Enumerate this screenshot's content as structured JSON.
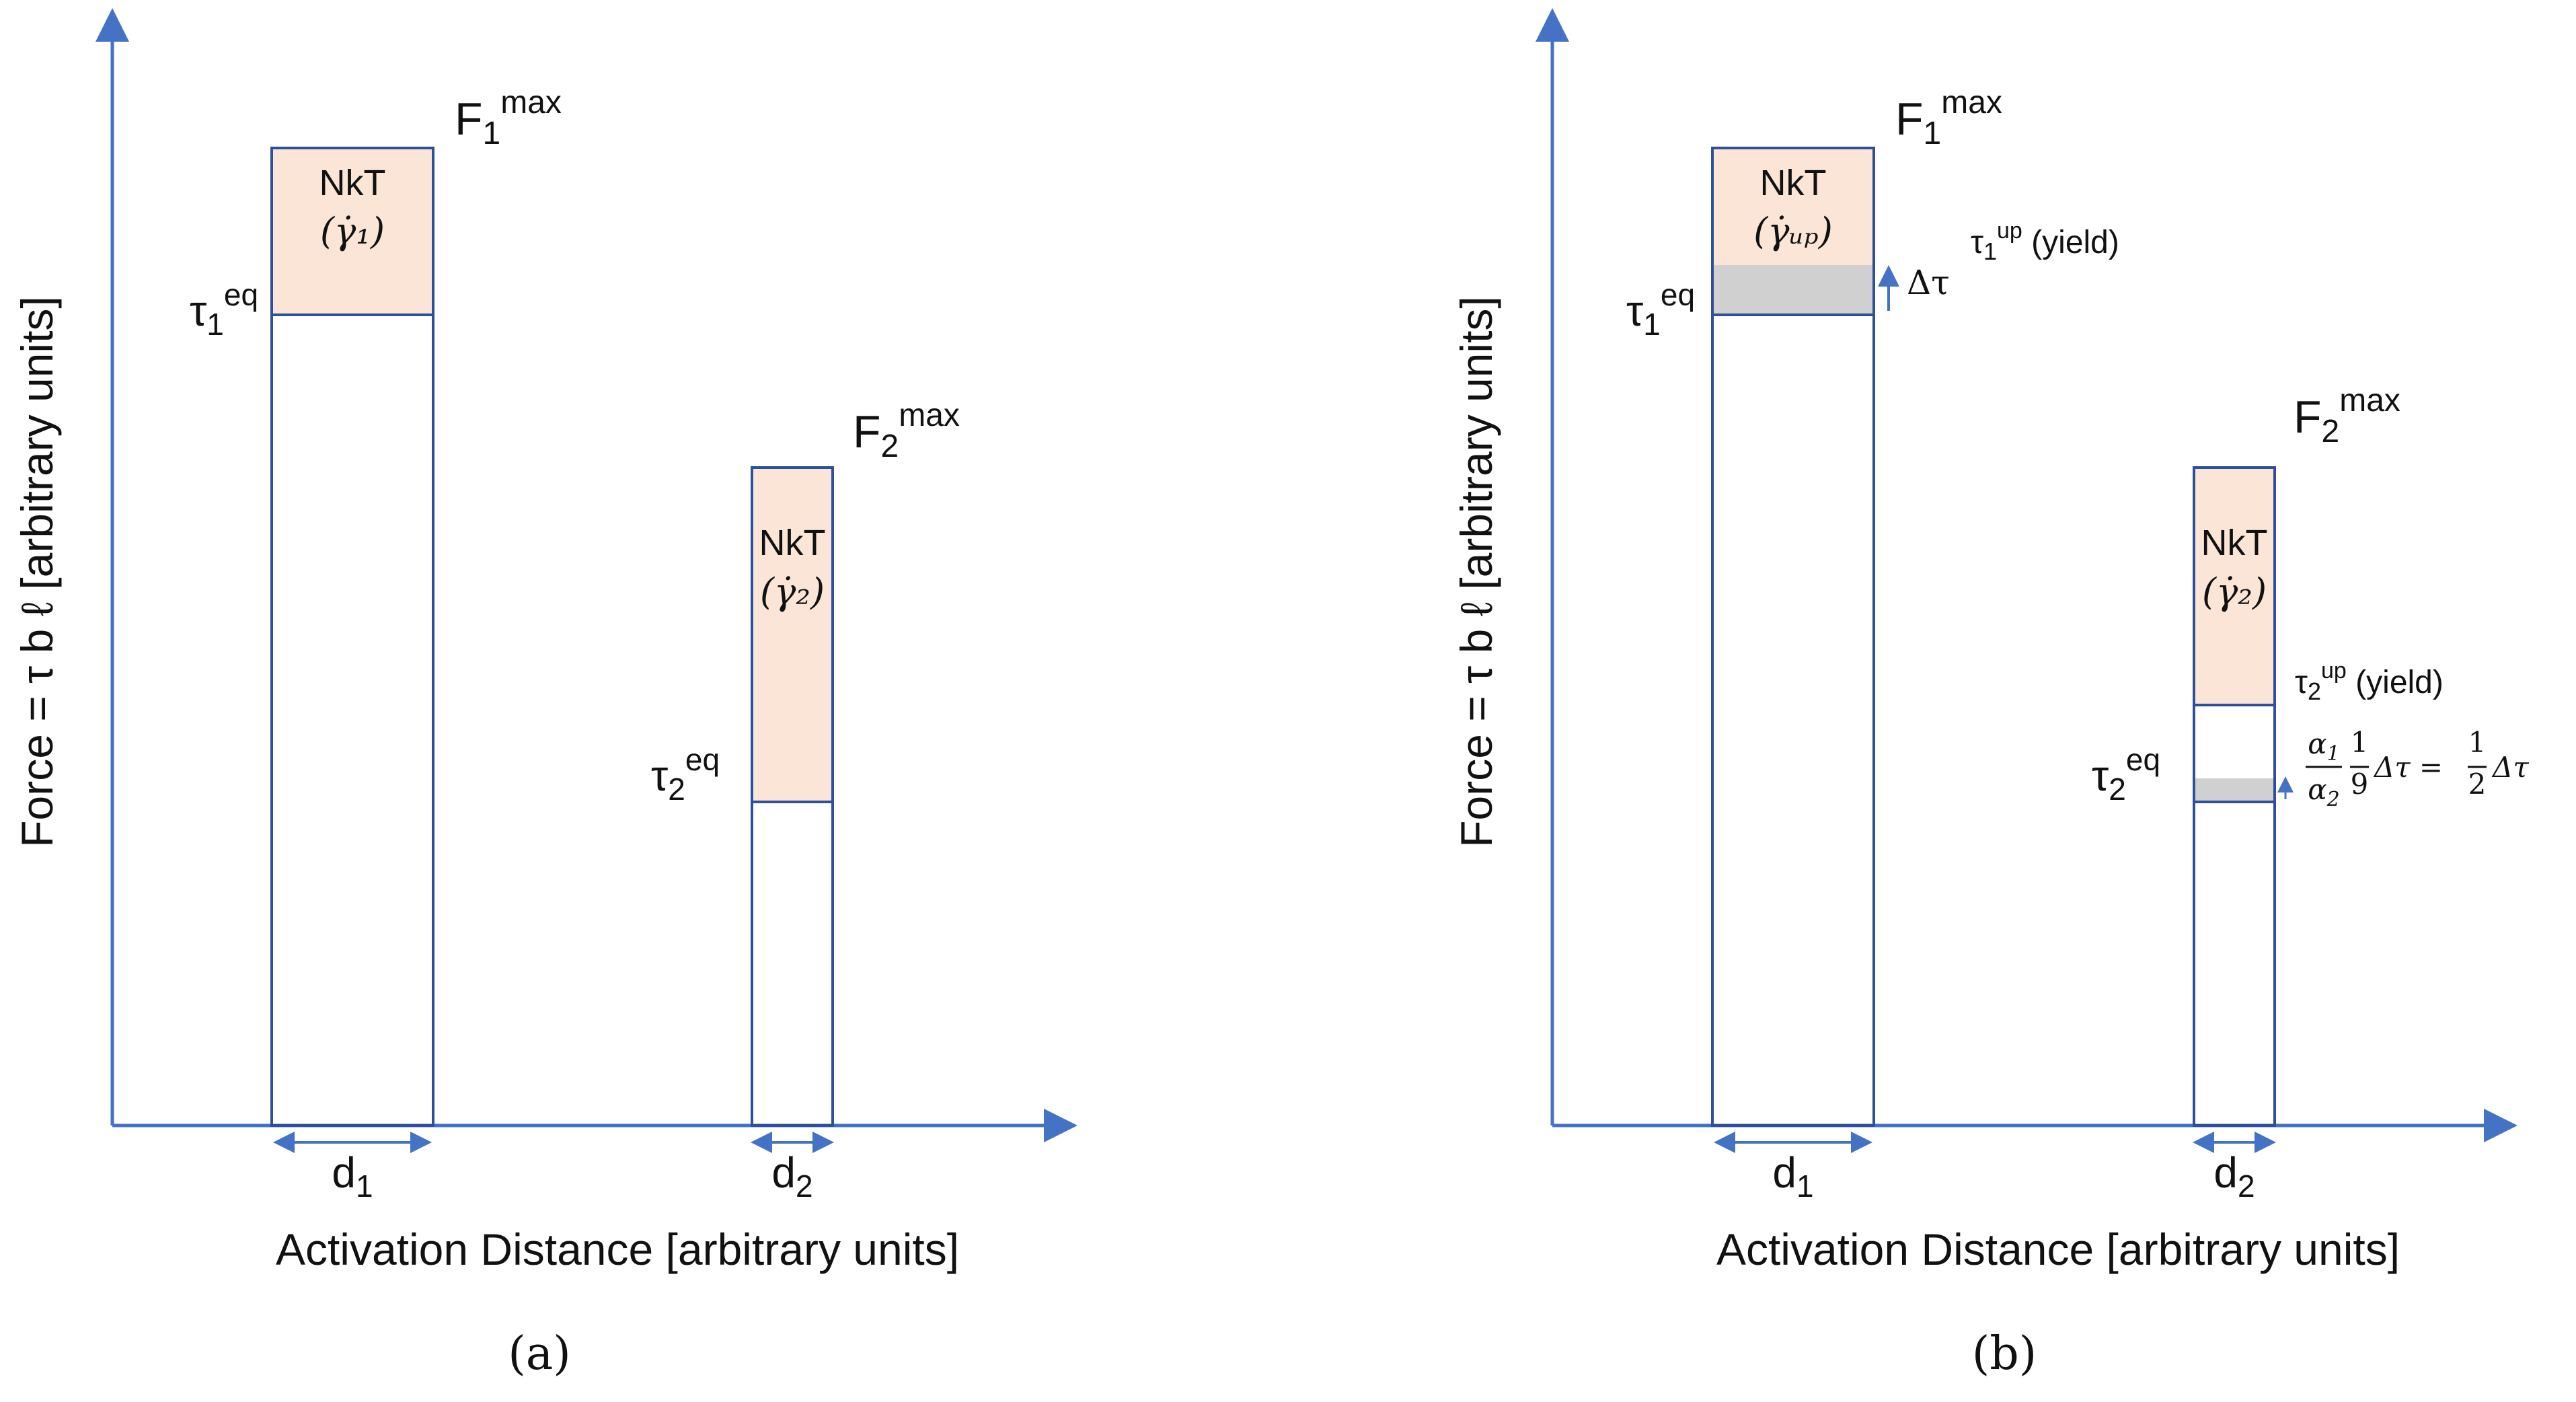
{
  "colors": {
    "axis": "#4472C4",
    "bar_outline": "#2F4E9B",
    "thermal_fill": "#FBE5D6",
    "gray_fill": "#D0D0D0",
    "text": "#111111"
  },
  "panels": [
    {
      "caption": "(a)",
      "y_axis_label": "Force = τ b ℓ [arbitrary units]",
      "x_axis_label": "Activation Distance [arbitrary units]",
      "bars": [
        {
          "fmax_base": "F",
          "fmax_sub": "1",
          "fmax_sup": "max",
          "nkt": "NkT",
          "rate_label": "(γ̇₁)",
          "tau_eq_base": "τ",
          "tau_eq_sub": "1",
          "tau_eq_sup": "eq",
          "width_base": "d",
          "width_sub": "1"
        },
        {
          "fmax_base": "F",
          "fmax_sub": "2",
          "fmax_sup": "max",
          "nkt": "NkT",
          "rate_label": "(γ̇₂)",
          "tau_eq_base": "τ",
          "tau_eq_sub": "2",
          "tau_eq_sup": "eq",
          "width_base": "d",
          "width_sub": "2"
        }
      ]
    },
    {
      "caption": "(b)",
      "y_axis_label": "Force = τ b ℓ [arbitrary units]",
      "x_axis_label": "Activation Distance [arbitrary units]",
      "bars": [
        {
          "fmax_base": "F",
          "fmax_sub": "1",
          "fmax_sup": "max",
          "nkt": "NkT",
          "rate_label": "(γ̇ᵤₚ)",
          "tau_eq_base": "τ",
          "tau_eq_sub": "1",
          "tau_eq_sup": "eq",
          "tau_up_base": "τ",
          "tau_up_sub": "1",
          "tau_up_sup": "up",
          "tau_up_suffix": " (yield)",
          "delta_label": "Δτ",
          "width_base": "d",
          "width_sub": "1"
        },
        {
          "fmax_base": "F",
          "fmax_sub": "2",
          "fmax_sup": "max",
          "nkt": "NkT",
          "rate_label": "(γ̇₂)",
          "tau_eq_base": "τ",
          "tau_eq_sub": "2",
          "tau_eq_sup": "eq",
          "tau_up_base": "τ",
          "tau_up_sub": "2",
          "tau_up_sup": "up",
          "tau_up_suffix": " (yield)",
          "formula": {
            "alpha_num": "α",
            "alpha_num_sub": "1",
            "alpha_den": "α",
            "alpha_den_sub": "2",
            "frac_num": "1",
            "frac_den": "9",
            "mid": "Δτ =",
            "half_num": "1",
            "half_den": "2",
            "tail": "Δτ"
          },
          "width_base": "d",
          "width_sub": "2"
        }
      ]
    }
  ]
}
